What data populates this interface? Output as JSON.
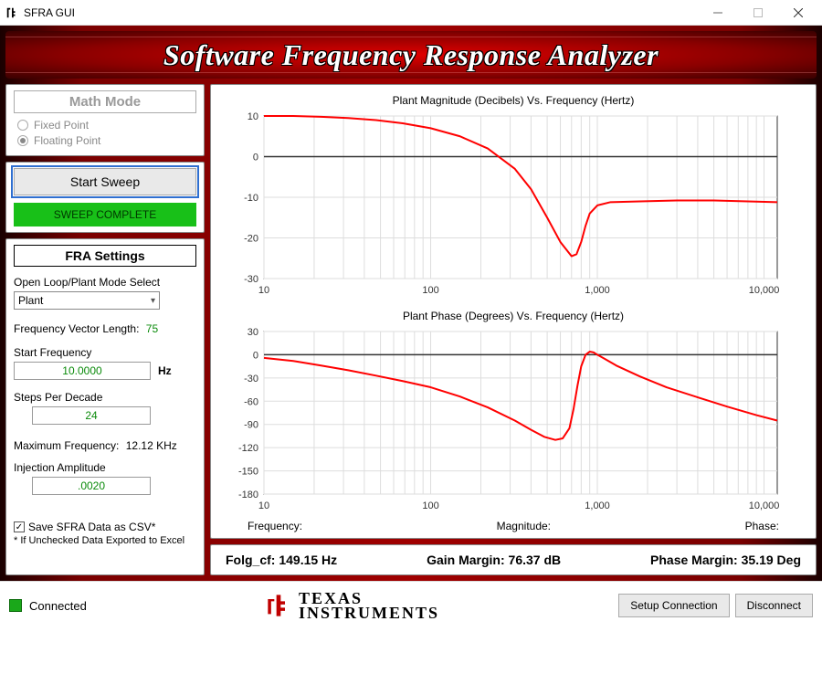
{
  "window": {
    "title": "SFRA GUI"
  },
  "banner": {
    "text": "Software Frequency Response Analyzer"
  },
  "math_mode": {
    "title": "Math Mode",
    "options": [
      "Fixed Point",
      "Floating Point"
    ],
    "selected": "Floating Point"
  },
  "sweep": {
    "button_label": "Start Sweep",
    "status_text": "SWEEP COMPLETE",
    "status_bg": "#18c018",
    "status_fg": "#003800"
  },
  "fra": {
    "title": "FRA Settings",
    "mode_label": "Open Loop/Plant Mode Select",
    "mode_value": "Plant",
    "freq_vec_label": "Frequency Vector Length:",
    "freq_vec_value": "75",
    "start_freq_label": "Start Frequency",
    "start_freq_value": "10.0000",
    "start_freq_unit": "Hz",
    "steps_label": "Steps Per Decade",
    "steps_value": "24",
    "max_freq_label": "Maximum Frequency:",
    "max_freq_value": "12.12 KHz",
    "inj_label": "Injection Amplitude",
    "inj_value": ".0020",
    "csv_label": "Save SFRA Data as CSV*",
    "csv_checked": true,
    "csv_note": "* If Unchecked Data Exported to Excel"
  },
  "charts": {
    "mag": {
      "title": "Plant Magnitude (Decibels) Vs. Frequency (Hertz)",
      "type": "line",
      "x_scale": "log",
      "xlim": [
        10,
        12000
      ],
      "xticks": [
        10,
        100,
        1000,
        10000
      ],
      "xtick_labels": [
        "10",
        "100",
        "1,000",
        "10,000"
      ],
      "ylim": [
        -30,
        10
      ],
      "ytick_step": 10,
      "series_color": "#ff0000",
      "grid_color": "#dddddd",
      "background_color": "#ffffff",
      "line_width": 2,
      "data": [
        [
          10,
          10
        ],
        [
          15,
          10
        ],
        [
          22,
          9.8
        ],
        [
          32,
          9.5
        ],
        [
          47,
          9
        ],
        [
          68,
          8.2
        ],
        [
          100,
          7
        ],
        [
          150,
          5
        ],
        [
          220,
          2
        ],
        [
          320,
          -3
        ],
        [
          400,
          -8
        ],
        [
          500,
          -15
        ],
        [
          600,
          -21
        ],
        [
          700,
          -24.5
        ],
        [
          750,
          -24
        ],
        [
          800,
          -21
        ],
        [
          850,
          -17
        ],
        [
          900,
          -14
        ],
        [
          1000,
          -12
        ],
        [
          1200,
          -11.2
        ],
        [
          1800,
          -11
        ],
        [
          3000,
          -10.8
        ],
        [
          5000,
          -10.8
        ],
        [
          8000,
          -11
        ],
        [
          12000,
          -11.2
        ]
      ]
    },
    "phase": {
      "title": "Plant Phase (Degrees) Vs. Frequency (Hertz)",
      "type": "line",
      "x_scale": "log",
      "xlim": [
        10,
        12000
      ],
      "xticks": [
        10,
        100,
        1000,
        10000
      ],
      "xtick_labels": [
        "10",
        "100",
        "1,000",
        "10,000"
      ],
      "ylim": [
        -180,
        30
      ],
      "ytick_step": 30,
      "series_color": "#ff0000",
      "grid_color": "#dddddd",
      "background_color": "#ffffff",
      "line_width": 2,
      "data": [
        [
          10,
          -4
        ],
        [
          15,
          -8
        ],
        [
          22,
          -14
        ],
        [
          32,
          -20
        ],
        [
          47,
          -27
        ],
        [
          68,
          -34
        ],
        [
          100,
          -42
        ],
        [
          150,
          -54
        ],
        [
          220,
          -68
        ],
        [
          320,
          -85
        ],
        [
          400,
          -97
        ],
        [
          480,
          -106
        ],
        [
          560,
          -110
        ],
        [
          620,
          -108
        ],
        [
          680,
          -95
        ],
        [
          720,
          -70
        ],
        [
          760,
          -40
        ],
        [
          800,
          -15
        ],
        [
          850,
          0
        ],
        [
          900,
          4
        ],
        [
          950,
          3
        ],
        [
          1000,
          0
        ],
        [
          1100,
          -5
        ],
        [
          1300,
          -14
        ],
        [
          1800,
          -28
        ],
        [
          2600,
          -42
        ],
        [
          4000,
          -55
        ],
        [
          6000,
          -67
        ],
        [
          9000,
          -78
        ],
        [
          12000,
          -85
        ]
      ]
    },
    "readout": {
      "freq_label": "Frequency:",
      "mag_label": "Magnitude:",
      "phase_label": "Phase:"
    }
  },
  "margins": {
    "folg_label": "Folg_cf:",
    "folg_value": "149.15 Hz",
    "gain_label": "Gain Margin:",
    "gain_value": "76.37 dB",
    "phase_label": "Phase Margin:",
    "phase_value": "35.19 Deg"
  },
  "footer": {
    "connected_label": "Connected",
    "connected_color": "#1aa81a",
    "logo_top": "TEXAS",
    "logo_bottom": "INSTRUMENTS",
    "setup_btn": "Setup Connection",
    "disconnect_btn": "Disconnect"
  }
}
